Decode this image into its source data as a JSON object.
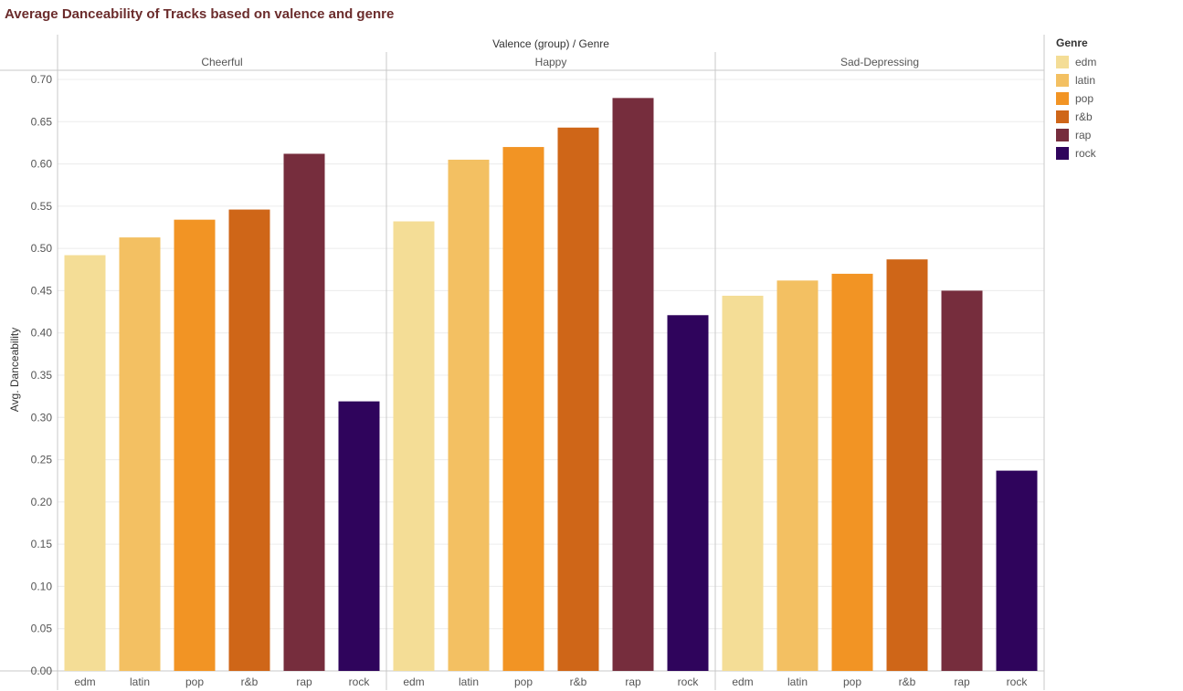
{
  "chart_data": {
    "type": "bar",
    "title": "Average Danceability of Tracks based on valence and genre",
    "header": "Valence (group)  /  Genre",
    "ylabel": "Avg. Danceability",
    "ylim": [
      0,
      0.72
    ],
    "yticks": [
      "0.00",
      "0.05",
      "0.10",
      "0.15",
      "0.20",
      "0.25",
      "0.30",
      "0.35",
      "0.40",
      "0.45",
      "0.50",
      "0.55",
      "0.60",
      "0.65",
      "0.70"
    ],
    "grid": true,
    "legend_position": "right",
    "legend_title": "Genre",
    "genres": [
      "edm",
      "latin",
      "pop",
      "r&b",
      "rap",
      "rock"
    ],
    "colors": {
      "edm": "#f4dd96",
      "latin": "#f3c062",
      "pop": "#f29424",
      "r&b": "#cf6618",
      "rap": "#762d3d",
      "rock": "#2f045c"
    },
    "groups": [
      {
        "name": "Cheerful",
        "values": [
          0.492,
          0.513,
          0.534,
          0.546,
          0.612,
          0.319
        ]
      },
      {
        "name": "Happy",
        "values": [
          0.532,
          0.605,
          0.62,
          0.643,
          0.678,
          0.421
        ]
      },
      {
        "name": "Sad-Depressing",
        "values": [
          0.444,
          0.462,
          0.47,
          0.487,
          0.45,
          0.237
        ]
      }
    ]
  }
}
